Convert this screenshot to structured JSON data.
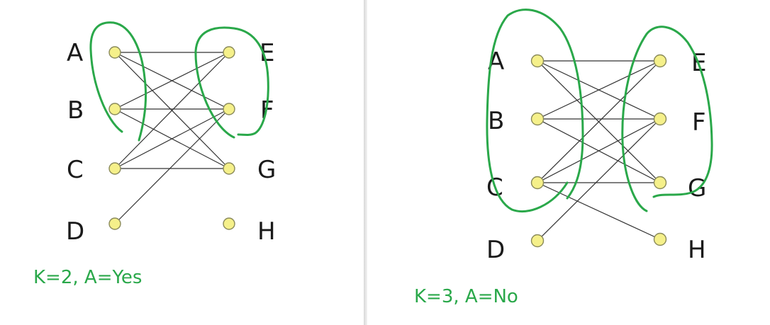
{
  "left_panel": {
    "labels": {
      "A": "A",
      "B": "B",
      "C": "C",
      "D": "D",
      "E": "E",
      "F": "F",
      "G": "G",
      "H": "H"
    },
    "caption": "K=2, A=Yes"
  },
  "right_panel": {
    "labels": {
      "A": "A",
      "B": "B",
      "C": "C",
      "D": "D",
      "E": "E",
      "F": "F",
      "G": "G",
      "H": "H"
    },
    "caption": "K=3, A=No"
  },
  "colors": {
    "annotation": "#2aa84a",
    "node_fill": "#f5f08a",
    "edge": "#333333"
  }
}
